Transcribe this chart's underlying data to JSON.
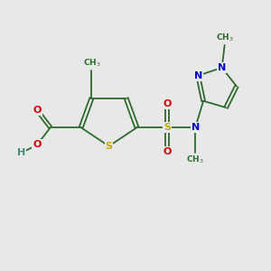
{
  "bg_color": "#e8e8e8",
  "bond_color": "#2d6a2d",
  "S_color": "#c8a800",
  "O_color": "#dd0000",
  "N_color": "#0000cc",
  "H_color": "#4a8a7a",
  "font_size_atom": 8,
  "line_width": 1.3,
  "xlim": [
    0,
    10
  ],
  "ylim": [
    0,
    10
  ]
}
